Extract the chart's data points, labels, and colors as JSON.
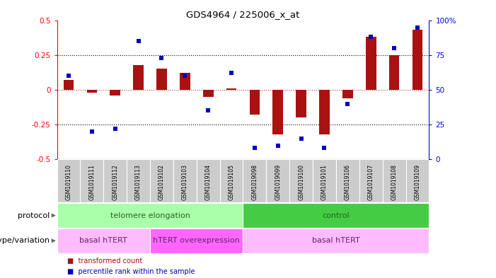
{
  "title": "GDS4964 / 225006_x_at",
  "samples": [
    "GSM1019110",
    "GSM1019111",
    "GSM1019112",
    "GSM1019113",
    "GSM1019102",
    "GSM1019103",
    "GSM1019104",
    "GSM1019105",
    "GSM1019098",
    "GSM1019099",
    "GSM1019100",
    "GSM1019101",
    "GSM1019106",
    "GSM1019107",
    "GSM1019108",
    "GSM1019109"
  ],
  "transformed_count": [
    0.07,
    -0.02,
    -0.04,
    0.18,
    0.15,
    0.12,
    -0.05,
    0.01,
    -0.18,
    -0.32,
    -0.2,
    -0.32,
    -0.06,
    0.38,
    0.25,
    0.43
  ],
  "percentile_rank": [
    60,
    20,
    22,
    85,
    73,
    60,
    35,
    62,
    8,
    10,
    15,
    8,
    40,
    88,
    80,
    95
  ],
  "protocol_groups": [
    {
      "label": "telomere elongation",
      "start": 0,
      "end": 8,
      "color": "#AAFFAA"
    },
    {
      "label": "control",
      "start": 8,
      "end": 16,
      "color": "#44CC44"
    }
  ],
  "genotype_groups": [
    {
      "label": "basal hTERT",
      "start": 0,
      "end": 4,
      "color": "#FFBBFF"
    },
    {
      "label": "hTERT overexpression",
      "start": 4,
      "end": 8,
      "color": "#FF66FF"
    },
    {
      "label": "basal hTERT",
      "start": 8,
      "end": 16,
      "color": "#FFBBFF"
    }
  ],
  "bar_color": "#AA1111",
  "dot_color": "#0000BB",
  "ylim_left": [
    -0.5,
    0.5
  ],
  "ylim_right": [
    0,
    100
  ],
  "yticks_left": [
    -0.5,
    -0.25,
    0.0,
    0.25,
    0.5
  ],
  "yticks_right": [
    0,
    25,
    50,
    75,
    100
  ],
  "legend_items": [
    {
      "label": "transformed count",
      "color": "#AA1111"
    },
    {
      "label": "percentile rank within the sample",
      "color": "#0000BB"
    }
  ],
  "label_area_color": "#CCCCCC",
  "bar_width": 0.45
}
